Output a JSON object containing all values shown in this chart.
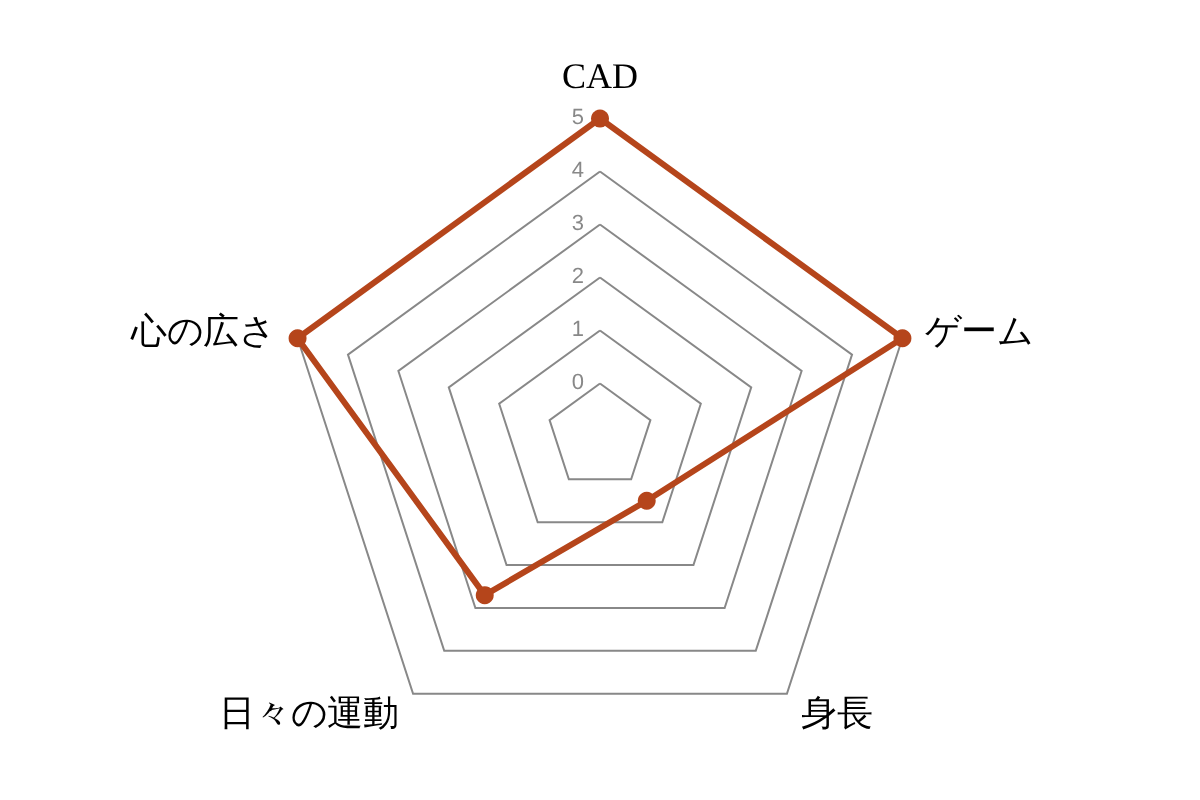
{
  "chart_data": {
    "type": "radar",
    "categories": [
      "CAD",
      "ゲーム",
      "身長",
      "日々の運動",
      "心の広さ"
    ],
    "series": [
      {
        "color": "#b5451b",
        "values": [
          5,
          5,
          0.5,
          2.7,
          5
        ]
      }
    ],
    "ylim": [
      -1,
      5
    ],
    "yticks": [
      0,
      1,
      2,
      3,
      4,
      5
    ],
    "grid": true,
    "marker": "circle"
  }
}
